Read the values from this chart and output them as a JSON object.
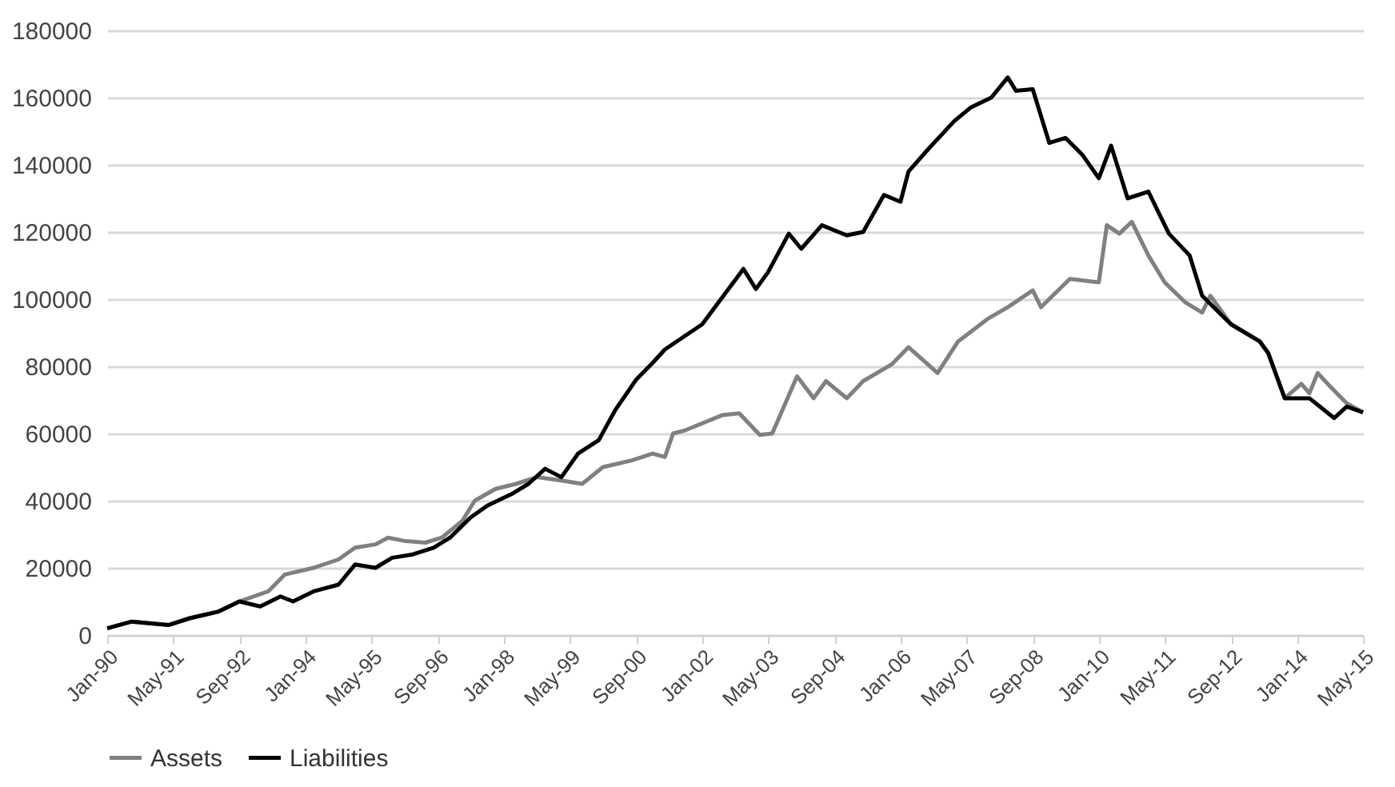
{
  "chart_data": {
    "type": "line",
    "xlim": [
      "1990-01",
      "2015-05"
    ],
    "xticks": [
      {
        "value": "1990-01",
        "label": "Jan-90"
      },
      {
        "value": "1991-05",
        "label": "May-91"
      },
      {
        "value": "1992-09",
        "label": "Sep-92"
      },
      {
        "value": "1994-01",
        "label": "Jan-94"
      },
      {
        "value": "1995-05",
        "label": "May-95"
      },
      {
        "value": "1996-09",
        "label": "Sep-96"
      },
      {
        "value": "1998-01",
        "label": "Jan-98"
      },
      {
        "value": "1999-05",
        "label": "May-99"
      },
      {
        "value": "2000-09",
        "label": "Sep-00"
      },
      {
        "value": "2002-01",
        "label": "Jan-02"
      },
      {
        "value": "2003-05",
        "label": "May-03"
      },
      {
        "value": "2004-09",
        "label": "Sep-04"
      },
      {
        "value": "2006-01",
        "label": "Jan-06"
      },
      {
        "value": "2007-05",
        "label": "May-07"
      },
      {
        "value": "2008-09",
        "label": "Sep-08"
      },
      {
        "value": "2010-01",
        "label": "Jan-10"
      },
      {
        "value": "2011-05",
        "label": "May-11"
      },
      {
        "value": "2012-09",
        "label": "Sep-12"
      },
      {
        "value": "2014-01",
        "label": "Jan-14"
      },
      {
        "value": "2015-05",
        "label": "May-15"
      }
    ],
    "ylim": [
      0,
      180000
    ],
    "yticks": [
      0,
      20000,
      40000,
      60000,
      80000,
      100000,
      120000,
      140000,
      160000,
      180000
    ],
    "grid": "y",
    "legend": "bottom",
    "marker": "none",
    "line_style": "solid",
    "series": [
      {
        "name": "Assets",
        "color": "#808080",
        "x": [
          "1990-01",
          "1990-07",
          "1991-04",
          "1991-09",
          "1992-04",
          "1992-09",
          "1993-04",
          "1993-08",
          "1994-03",
          "1994-09",
          "1995-01",
          "1995-06",
          "1995-09",
          "1996-01",
          "1996-06",
          "1996-10",
          "1997-03",
          "1997-06",
          "1997-11",
          "1998-04",
          "1998-09",
          "1999-03",
          "1999-08",
          "2000-01",
          "2000-08",
          "2001-01",
          "2001-04",
          "2001-06",
          "2001-09",
          "2002-06",
          "2002-10",
          "2003-03",
          "2003-06",
          "2003-12",
          "2004-04",
          "2004-07",
          "2004-12",
          "2005-04",
          "2005-11",
          "2006-03",
          "2006-10",
          "2007-03",
          "2007-10",
          "2008-03",
          "2008-09",
          "2008-11",
          "2009-06",
          "2010-01",
          "2010-03",
          "2010-06",
          "2010-09",
          "2011-01",
          "2011-05",
          "2011-10",
          "2012-02",
          "2012-04",
          "2012-09",
          "2013-04",
          "2013-06",
          "2013-10",
          "2014-02",
          "2014-04",
          "2014-06",
          "2014-09",
          "2015-01",
          "2015-05"
        ],
        "values": [
          2000,
          4000,
          3000,
          5000,
          7000,
          10000,
          13000,
          18000,
          20000,
          22500,
          26000,
          27000,
          29000,
          28000,
          27500,
          29000,
          34000,
          40000,
          43500,
          45000,
          47000,
          46000,
          45000,
          50000,
          52000,
          54000,
          53000,
          60000,
          61000,
          65500,
          66000,
          59600,
          60000,
          77000,
          70500,
          75600,
          70500,
          75600,
          80700,
          85700,
          78000,
          87400,
          94000,
          97600,
          102600,
          97600,
          106000,
          105000,
          122000,
          119500,
          123000,
          113000,
          105000,
          99000,
          96000,
          101000,
          92500,
          87400,
          84000,
          70500,
          74800,
          72000,
          78000,
          74000,
          69000,
          66300
        ]
      },
      {
        "name": "Liabilities",
        "color": "#000000",
        "x": [
          "1990-01",
          "1990-07",
          "1991-04",
          "1991-09",
          "1992-04",
          "1992-09",
          "1993-02",
          "1993-07",
          "1993-10",
          "1994-03",
          "1994-09",
          "1995-01",
          "1995-06",
          "1995-10",
          "1996-03",
          "1996-08",
          "1996-12",
          "1997-05",
          "1997-09",
          "1998-03",
          "1998-07",
          "1998-11",
          "1999-03",
          "1999-07",
          "1999-12",
          "2000-04",
          "2000-09",
          "2001-01",
          "2001-04",
          "2002-01",
          "2002-11",
          "2003-02",
          "2003-05",
          "2003-10",
          "2004-01",
          "2004-06",
          "2004-12",
          "2005-04",
          "2005-09",
          "2006-01",
          "2006-03",
          "2006-08",
          "2007-02",
          "2007-06",
          "2007-11",
          "2008-03",
          "2008-05",
          "2008-09",
          "2009-01",
          "2009-05",
          "2009-09",
          "2010-01",
          "2010-04",
          "2010-08",
          "2011-01",
          "2011-06",
          "2011-11",
          "2012-02",
          "2012-09",
          "2013-04",
          "2013-06",
          "2013-10",
          "2014-04",
          "2014-10",
          "2015-01",
          "2015-05"
        ],
        "values": [
          2000,
          4000,
          3000,
          5000,
          7000,
          10000,
          8500,
          11500,
          10000,
          13000,
          15000,
          21000,
          20000,
          23000,
          24000,
          26000,
          29000,
          35000,
          38500,
          42000,
          45000,
          49500,
          47000,
          54000,
          58000,
          67000,
          76000,
          81000,
          85000,
          92500,
          109000,
          103000,
          108000,
          119500,
          115000,
          122000,
          119000,
          120000,
          131000,
          129000,
          138000,
          145000,
          153000,
          157000,
          160000,
          166000,
          162000,
          162500,
          146500,
          148000,
          143000,
          136000,
          145700,
          130000,
          132000,
          119500,
          113000,
          101000,
          92500,
          87400,
          84000,
          70500,
          70500,
          64600,
          68000,
          66300
        ]
      }
    ]
  }
}
